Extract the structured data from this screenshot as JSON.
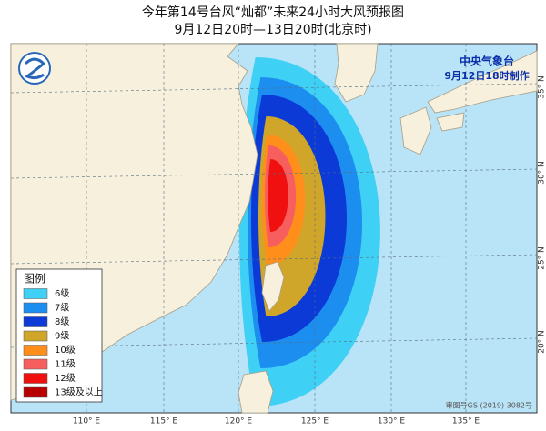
{
  "header": {
    "title": "今年第14号台风“灿都”未来24小时大风预报图",
    "subtitle": "9月12日20时—13日20时(北京时)"
  },
  "agency": {
    "name": "中央气象台",
    "issued": "9月12日18时制作"
  },
  "legend": {
    "title": "图例",
    "items": [
      {
        "label": "6级",
        "color": "#3fd0f5"
      },
      {
        "label": "7级",
        "color": "#1c8ef0"
      },
      {
        "label": "8级",
        "color": "#0b3ad6"
      },
      {
        "label": "9级",
        "color": "#cfa62a"
      },
      {
        "label": "10级",
        "color": "#ff8f1a"
      },
      {
        "label": "11级",
        "color": "#f75f5f"
      },
      {
        "label": "12级",
        "color": "#f01010"
      },
      {
        "label": "13级及以上",
        "color": "#b80000"
      }
    ]
  },
  "longitude_labels": [
    "110° E",
    "115° E",
    "120° E",
    "125° E",
    "130° E",
    "135° E"
  ],
  "latitude_labels": [
    "35° N",
    "30° N",
    "25° N",
    "20° N"
  ],
  "approval": "审图号GS (2019) 3082号"
}
